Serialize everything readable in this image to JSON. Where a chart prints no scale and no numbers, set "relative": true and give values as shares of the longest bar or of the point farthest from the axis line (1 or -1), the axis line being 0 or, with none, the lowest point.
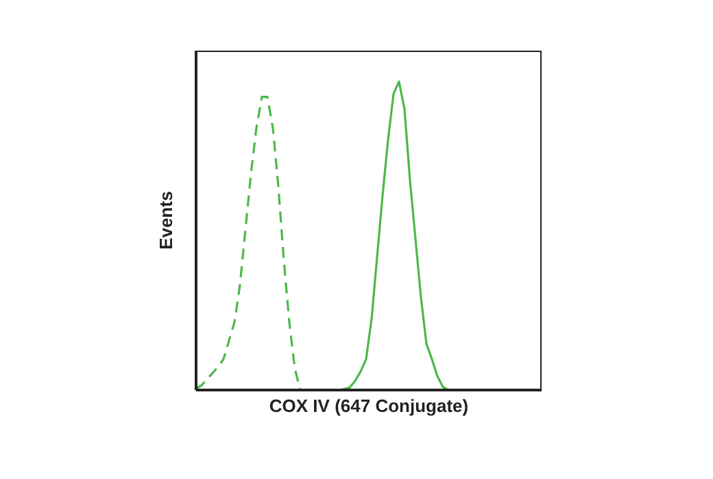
{
  "chart_data": {
    "type": "line",
    "relative": true,
    "xlabel": "COX IV (647 Conjugate)",
    "ylabel": "Events",
    "marker": "none",
    "categories": [
      null,
      null,
      null,
      null,
      null,
      null,
      null,
      null,
      null,
      null,
      null,
      null,
      null,
      null,
      null,
      null,
      null,
      null,
      null,
      null,
      null,
      null,
      null,
      null,
      null,
      null,
      null,
      null,
      null,
      null,
      null,
      null,
      null,
      null,
      null,
      null,
      null,
      null,
      null,
      null,
      null,
      null,
      null,
      null,
      null,
      null,
      null,
      null,
      null,
      null,
      null,
      null,
      null,
      null,
      null,
      null,
      null,
      null,
      null,
      null,
      null,
      null,
      null,
      null
    ],
    "series": [
      {
        "color": "#4cb848",
        "line_style": "dashed",
        "values": [
          0.005,
          0.015,
          0.035,
          0.055,
          0.075,
          0.1,
          0.16,
          0.22,
          0.34,
          0.52,
          0.7,
          0.85,
          0.95,
          0.95,
          0.85,
          0.66,
          0.42,
          0.22,
          0.07,
          0,
          null,
          null,
          null,
          null,
          null,
          null,
          null,
          null,
          null,
          null,
          null,
          null,
          null,
          null,
          null,
          null,
          null,
          null,
          null,
          null,
          null,
          null,
          null,
          null,
          null,
          null,
          null,
          null,
          null,
          null,
          null,
          null,
          null,
          null,
          null,
          null,
          null,
          null,
          null,
          null,
          null,
          null,
          null,
          null
        ]
      },
      {
        "color": "#4cb848",
        "line_style": "solid",
        "values": [
          null,
          null,
          null,
          null,
          null,
          null,
          null,
          null,
          null,
          null,
          null,
          null,
          null,
          null,
          null,
          null,
          null,
          null,
          null,
          null,
          null,
          null,
          null,
          null,
          null,
          null,
          0,
          0.003,
          0.008,
          0.03,
          0.06,
          0.1,
          0.23,
          0.43,
          0.63,
          0.81,
          0.96,
          1,
          0.91,
          0.68,
          0.49,
          0.3,
          0.15,
          0.1,
          0.045,
          0.01,
          0,
          null,
          null,
          null,
          null,
          null,
          null,
          null,
          null,
          null,
          null,
          null,
          null,
          null,
          null,
          null,
          null,
          null
        ]
      }
    ]
  }
}
